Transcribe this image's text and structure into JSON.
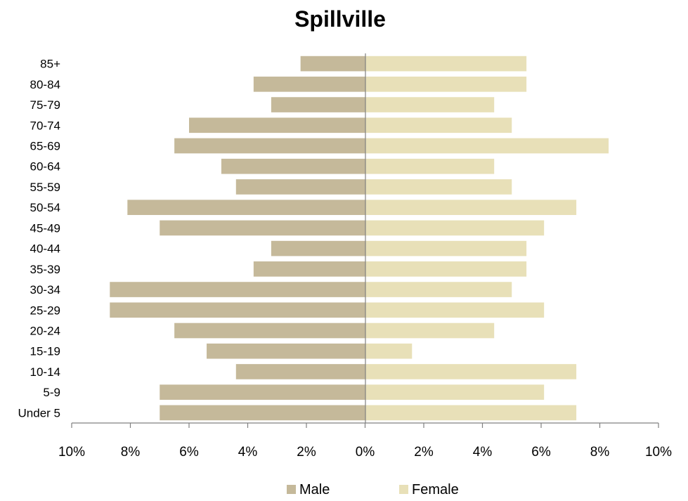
{
  "chart_data": {
    "type": "bar",
    "orientation": "horizontal",
    "title": "Spillville",
    "categories": [
      "85+",
      "80-84",
      "75-79",
      "70-74",
      "65-69",
      "60-64",
      "55-59",
      "50-54",
      "45-49",
      "40-44",
      "35-39",
      "30-34",
      "25-29",
      "20-24",
      "15-19",
      "10-14",
      "5-9",
      "Under 5"
    ],
    "series": [
      {
        "name": "Male",
        "color": "#c5b99a",
        "values": [
          2.2,
          3.8,
          3.2,
          6.0,
          6.5,
          4.9,
          4.4,
          8.1,
          7.0,
          3.2,
          3.8,
          8.7,
          8.7,
          6.5,
          5.4,
          4.4,
          7.0,
          7.0
        ]
      },
      {
        "name": "Female",
        "color": "#e8e0b8",
        "values": [
          5.5,
          5.5,
          4.4,
          5.0,
          8.3,
          4.4,
          5.0,
          7.2,
          6.1,
          5.5,
          5.5,
          5.0,
          6.1,
          4.4,
          1.6,
          7.2,
          6.1,
          7.2
        ]
      }
    ],
    "xlim": [
      -10,
      10
    ],
    "xticks": [
      "10%",
      "8%",
      "6%",
      "4%",
      "2%",
      "0%",
      "2%",
      "4%",
      "6%",
      "8%",
      "10%"
    ],
    "xlabel": "",
    "ylabel": "",
    "grid": false,
    "legend_position": "bottom"
  }
}
